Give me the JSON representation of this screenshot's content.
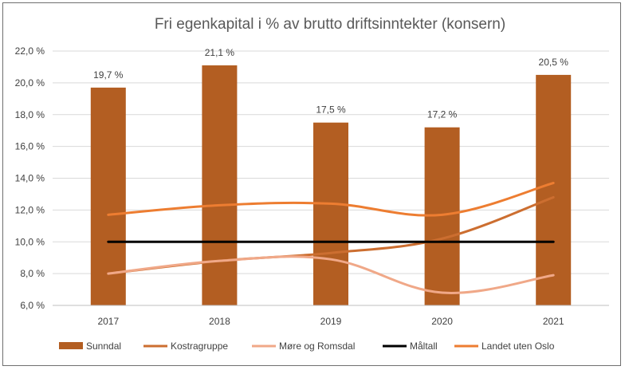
{
  "chart_data": {
    "type": "bar",
    "title": "Fri egenkapital i % av brutto driftsinntekter (konsern)",
    "categories": [
      "2017",
      "2018",
      "2019",
      "2020",
      "2021"
    ],
    "ylim": [
      6.0,
      22.0
    ],
    "yticks": [
      6.0,
      8.0,
      10.0,
      12.0,
      14.0,
      16.0,
      18.0,
      20.0,
      22.0
    ],
    "ytick_labels": [
      "6,0 %",
      "8,0 %",
      "10,0 %",
      "12,0 %",
      "14,0 %",
      "16,0 %",
      "18,0 %",
      "20,0 %",
      "22,0 %"
    ],
    "grid": true,
    "legend_position": "bottom",
    "series": [
      {
        "name": "Sunndal",
        "kind": "bar",
        "color": "#b35e22",
        "values": [
          19.7,
          21.1,
          17.5,
          17.2,
          20.5
        ],
        "data_labels": [
          "19,7 %",
          "21,1 %",
          "17,5 %",
          "17,2 %",
          "20,5 %"
        ]
      },
      {
        "name": "Kostragruppe",
        "kind": "line",
        "color": "#cc6e30",
        "values": [
          8.0,
          8.8,
          9.3,
          10.2,
          12.8
        ]
      },
      {
        "name": "Møre og Romsdal",
        "kind": "line",
        "color": "#f0a888",
        "values": [
          8.0,
          8.8,
          8.9,
          6.8,
          7.9
        ]
      },
      {
        "name": "Måltall",
        "kind": "line",
        "color": "#000000",
        "values": [
          10.0,
          10.0,
          10.0,
          10.0,
          10.0
        ]
      },
      {
        "name": "Landet uten Oslo",
        "kind": "line",
        "color": "#ed7d31",
        "values": [
          11.7,
          12.3,
          12.4,
          11.7,
          13.7
        ]
      }
    ]
  }
}
